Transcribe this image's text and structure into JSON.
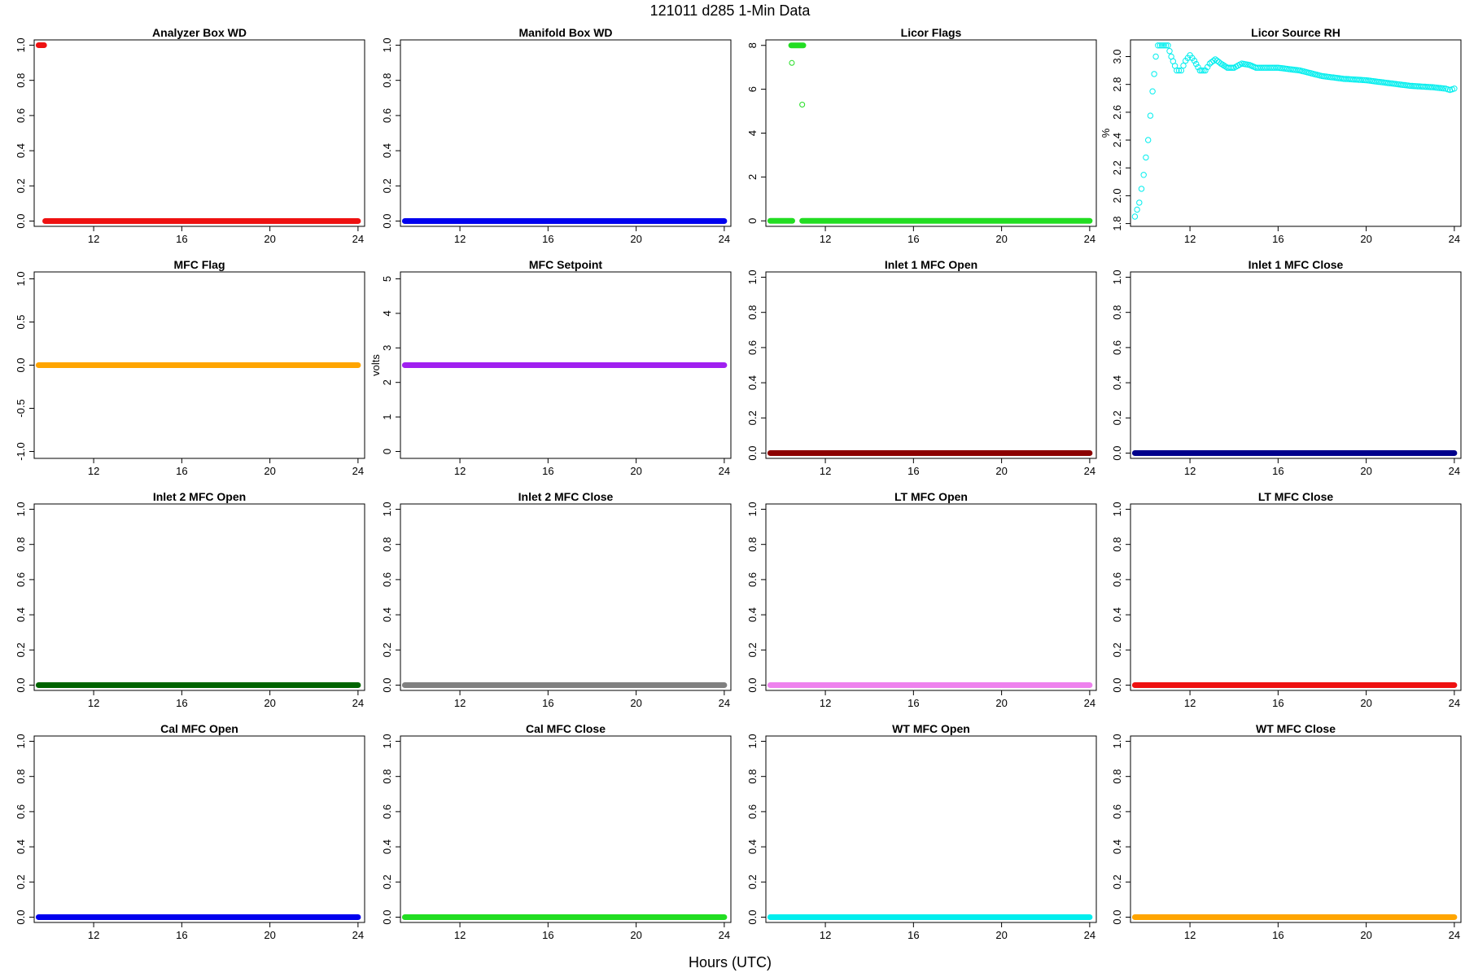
{
  "figure": {
    "title": "121011   d285   1-Min Data",
    "xlabel": "Hours (UTC)"
  },
  "chart_data": [
    {
      "type": "scatter",
      "title": "Analyzer Box WD",
      "ylabel": "",
      "color": "#ee1111",
      "xlim": [
        9.3,
        24.3
      ],
      "ylim": [
        -0.03,
        1.03
      ],
      "xticks": [
        12,
        16,
        20,
        24
      ],
      "yticks": [
        0.0,
        0.2,
        0.4,
        0.6,
        0.8,
        1.0
      ],
      "ytick_labels": [
        "0.0",
        "0.2",
        "0.4",
        "0.6",
        "0.8",
        "1.0"
      ],
      "series": [
        {
          "segments": [
            {
              "x": [
                9.5,
                9.75
              ],
              "y": 1.0
            },
            {
              "x": [
                9.8,
                24.0
              ],
              "y": 0.0
            }
          ]
        }
      ]
    },
    {
      "type": "scatter",
      "title": "Manifold Box WD",
      "ylabel": "",
      "color": "#0000ee",
      "xlim": [
        9.3,
        24.3
      ],
      "ylim": [
        -0.03,
        1.03
      ],
      "xticks": [
        12,
        16,
        20,
        24
      ],
      "yticks": [
        0.0,
        0.2,
        0.4,
        0.6,
        0.8,
        1.0
      ],
      "ytick_labels": [
        "0.0",
        "0.2",
        "0.4",
        "0.6",
        "0.8",
        "1.0"
      ],
      "series": [
        {
          "segments": [
            {
              "x": [
                9.5,
                24.0
              ],
              "y": 0.0
            }
          ]
        }
      ]
    },
    {
      "type": "scatter",
      "title": "Licor Flags",
      "ylabel": "",
      "color": "#22dd22",
      "xlim": [
        9.3,
        24.3
      ],
      "ylim": [
        -0.25,
        8.25
      ],
      "xticks": [
        12,
        16,
        20,
        24
      ],
      "yticks": [
        0,
        2,
        4,
        6,
        8
      ],
      "ytick_labels": [
        "0",
        "2",
        "4",
        "6",
        "8"
      ],
      "series": [
        {
          "segments": [
            {
              "x": [
                9.5,
                10.5
              ],
              "y": 0.0
            },
            {
              "x": [
                10.45,
                11.0
              ],
              "y": 8.0
            },
            {
              "x": [
                10.95,
                24.0
              ],
              "y": 0.0
            }
          ],
          "points": [
            {
              "x": [
                10.48
              ],
              "y": 7.2
            },
            {
              "x": [
                10.95
              ],
              "y": 5.3
            }
          ]
        }
      ]
    },
    {
      "type": "scatter",
      "title": "Licor Source RH",
      "ylabel": "%",
      "color": "#00eeee",
      "xlim": [
        9.3,
        24.3
      ],
      "ylim": [
        1.78,
        3.12
      ],
      "xticks": [
        12,
        16,
        20,
        24
      ],
      "yticks": [
        1.8,
        2.0,
        2.2,
        2.4,
        2.6,
        2.8,
        3.0
      ],
      "ytick_labels": [
        "1.8",
        "2.0",
        "2.2",
        "2.4",
        "2.6",
        "2.8",
        "3.0"
      ],
      "series": [
        {
          "curve": [
            [
              9.5,
              1.85
            ],
            [
              9.7,
              1.95
            ],
            [
              9.9,
              2.15
            ],
            [
              10.1,
              2.4
            ],
            [
              10.3,
              2.75
            ],
            [
              10.45,
              3.0
            ],
            [
              10.55,
              3.08
            ],
            [
              11.0,
              3.08
            ],
            [
              11.15,
              3.0
            ],
            [
              11.4,
              2.9
            ],
            [
              11.6,
              2.9
            ],
            [
              11.8,
              2.97
            ],
            [
              12.0,
              3.01
            ],
            [
              12.2,
              2.97
            ],
            [
              12.45,
              2.9
            ],
            [
              12.7,
              2.9
            ],
            [
              12.9,
              2.95
            ],
            [
              13.15,
              2.98
            ],
            [
              13.4,
              2.95
            ],
            [
              13.7,
              2.92
            ],
            [
              14.0,
              2.92
            ],
            [
              14.35,
              2.95
            ],
            [
              14.7,
              2.94
            ],
            [
              15.0,
              2.92
            ],
            [
              16.0,
              2.92
            ],
            [
              17.0,
              2.9
            ],
            [
              18.0,
              2.86
            ],
            [
              19.0,
              2.84
            ],
            [
              20.0,
              2.83
            ],
            [
              21.0,
              2.81
            ],
            [
              22.0,
              2.79
            ],
            [
              23.0,
              2.78
            ],
            [
              23.6,
              2.77
            ],
            [
              23.8,
              2.76
            ],
            [
              24.0,
              2.77
            ]
          ]
        }
      ]
    },
    {
      "type": "scatter",
      "title": "MFC Flag",
      "ylabel": "",
      "color": "#ffa500",
      "xlim": [
        9.3,
        24.3
      ],
      "ylim": [
        -1.08,
        1.08
      ],
      "xticks": [
        12,
        16,
        20,
        24
      ],
      "yticks": [
        -1.0,
        -0.5,
        0.0,
        0.5,
        1.0
      ],
      "ytick_labels": [
        "-1.0",
        "-0.5",
        "0.0",
        "0.5",
        "1.0"
      ],
      "series": [
        {
          "segments": [
            {
              "x": [
                9.5,
                24.0
              ],
              "y": 0.0
            }
          ]
        }
      ]
    },
    {
      "type": "scatter",
      "title": "MFC Setpoint",
      "ylabel": "volts",
      "color": "#a020f0",
      "xlim": [
        9.3,
        24.3
      ],
      "ylim": [
        -0.2,
        5.2
      ],
      "xticks": [
        12,
        16,
        20,
        24
      ],
      "yticks": [
        0,
        1,
        2,
        3,
        4,
        5
      ],
      "ytick_labels": [
        "0",
        "1",
        "2",
        "3",
        "4",
        "5"
      ],
      "series": [
        {
          "segments": [
            {
              "x": [
                9.5,
                24.0
              ],
              "y": 2.5
            }
          ]
        }
      ]
    },
    {
      "type": "scatter",
      "title": "Inlet 1 MFC Open",
      "ylabel": "",
      "color": "#8b0000",
      "xlim": [
        9.3,
        24.3
      ],
      "ylim": [
        -0.03,
        1.03
      ],
      "xticks": [
        12,
        16,
        20,
        24
      ],
      "yticks": [
        0.0,
        0.2,
        0.4,
        0.6,
        0.8,
        1.0
      ],
      "ytick_labels": [
        "0.0",
        "0.2",
        "0.4",
        "0.6",
        "0.8",
        "1.0"
      ],
      "series": [
        {
          "segments": [
            {
              "x": [
                9.5,
                24.0
              ],
              "y": 0.0
            }
          ]
        }
      ]
    },
    {
      "type": "scatter",
      "title": "Inlet 1 MFC Close",
      "ylabel": "",
      "color": "#00008b",
      "xlim": [
        9.3,
        24.3
      ],
      "ylim": [
        -0.03,
        1.03
      ],
      "xticks": [
        12,
        16,
        20,
        24
      ],
      "yticks": [
        0.0,
        0.2,
        0.4,
        0.6,
        0.8,
        1.0
      ],
      "ytick_labels": [
        "0.0",
        "0.2",
        "0.4",
        "0.6",
        "0.8",
        "1.0"
      ],
      "series": [
        {
          "segments": [
            {
              "x": [
                9.5,
                24.0
              ],
              "y": 0.0
            }
          ]
        }
      ]
    },
    {
      "type": "scatter",
      "title": "Inlet 2 MFC Open",
      "ylabel": "",
      "color": "#006400",
      "xlim": [
        9.3,
        24.3
      ],
      "ylim": [
        -0.03,
        1.03
      ],
      "xticks": [
        12,
        16,
        20,
        24
      ],
      "yticks": [
        0.0,
        0.2,
        0.4,
        0.6,
        0.8,
        1.0
      ],
      "ytick_labels": [
        "0.0",
        "0.2",
        "0.4",
        "0.6",
        "0.8",
        "1.0"
      ],
      "series": [
        {
          "segments": [
            {
              "x": [
                9.5,
                24.0
              ],
              "y": 0.0
            }
          ]
        }
      ]
    },
    {
      "type": "scatter",
      "title": "Inlet 2 MFC Close",
      "ylabel": "",
      "color": "#808080",
      "xlim": [
        9.3,
        24.3
      ],
      "ylim": [
        -0.03,
        1.03
      ],
      "xticks": [
        12,
        16,
        20,
        24
      ],
      "yticks": [
        0.0,
        0.2,
        0.4,
        0.6,
        0.8,
        1.0
      ],
      "ytick_labels": [
        "0.0",
        "0.2",
        "0.4",
        "0.6",
        "0.8",
        "1.0"
      ],
      "series": [
        {
          "segments": [
            {
              "x": [
                9.5,
                24.0
              ],
              "y": 0.0
            }
          ]
        }
      ]
    },
    {
      "type": "scatter",
      "title": "LT MFC Open",
      "ylabel": "",
      "color": "#ee82ee",
      "xlim": [
        9.3,
        24.3
      ],
      "ylim": [
        -0.03,
        1.03
      ],
      "xticks": [
        12,
        16,
        20,
        24
      ],
      "yticks": [
        0.0,
        0.2,
        0.4,
        0.6,
        0.8,
        1.0
      ],
      "ytick_labels": [
        "0.0",
        "0.2",
        "0.4",
        "0.6",
        "0.8",
        "1.0"
      ],
      "series": [
        {
          "segments": [
            {
              "x": [
                9.5,
                24.0
              ],
              "y": 0.0
            }
          ]
        }
      ]
    },
    {
      "type": "scatter",
      "title": "LT MFC Close",
      "ylabel": "",
      "color": "#ee1111",
      "xlim": [
        9.3,
        24.3
      ],
      "ylim": [
        -0.03,
        1.03
      ],
      "xticks": [
        12,
        16,
        20,
        24
      ],
      "yticks": [
        0.0,
        0.2,
        0.4,
        0.6,
        0.8,
        1.0
      ],
      "ytick_labels": [
        "0.0",
        "0.2",
        "0.4",
        "0.6",
        "0.8",
        "1.0"
      ],
      "series": [
        {
          "segments": [
            {
              "x": [
                9.5,
                24.0
              ],
              "y": 0.0
            }
          ]
        }
      ]
    },
    {
      "type": "scatter",
      "title": "Cal MFC Open",
      "ylabel": "",
      "color": "#0000ee",
      "xlim": [
        9.3,
        24.3
      ],
      "ylim": [
        -0.03,
        1.03
      ],
      "xticks": [
        12,
        16,
        20,
        24
      ],
      "yticks": [
        0.0,
        0.2,
        0.4,
        0.6,
        0.8,
        1.0
      ],
      "ytick_labels": [
        "0.0",
        "0.2",
        "0.4",
        "0.6",
        "0.8",
        "1.0"
      ],
      "series": [
        {
          "segments": [
            {
              "x": [
                9.5,
                24.0
              ],
              "y": 0.0
            }
          ]
        }
      ]
    },
    {
      "type": "scatter",
      "title": "Cal MFC Close",
      "ylabel": "",
      "color": "#22dd22",
      "xlim": [
        9.3,
        24.3
      ],
      "ylim": [
        -0.03,
        1.03
      ],
      "xticks": [
        12,
        16,
        20,
        24
      ],
      "yticks": [
        0.0,
        0.2,
        0.4,
        0.6,
        0.8,
        1.0
      ],
      "ytick_labels": [
        "0.0",
        "0.2",
        "0.4",
        "0.6",
        "0.8",
        "1.0"
      ],
      "series": [
        {
          "segments": [
            {
              "x": [
                9.5,
                24.0
              ],
              "y": 0.0
            }
          ]
        }
      ]
    },
    {
      "type": "scatter",
      "title": "WT MFC Open",
      "ylabel": "",
      "color": "#00eeee",
      "xlim": [
        9.3,
        24.3
      ],
      "ylim": [
        -0.03,
        1.03
      ],
      "xticks": [
        12,
        16,
        20,
        24
      ],
      "yticks": [
        0.0,
        0.2,
        0.4,
        0.6,
        0.8,
        1.0
      ],
      "ytick_labels": [
        "0.0",
        "0.2",
        "0.4",
        "0.6",
        "0.8",
        "1.0"
      ],
      "series": [
        {
          "segments": [
            {
              "x": [
                9.5,
                24.0
              ],
              "y": 0.0
            }
          ]
        }
      ]
    },
    {
      "type": "scatter",
      "title": "WT MFC Close",
      "ylabel": "",
      "color": "#ffa500",
      "xlim": [
        9.3,
        24.3
      ],
      "ylim": [
        -0.03,
        1.03
      ],
      "xticks": [
        12,
        16,
        20,
        24
      ],
      "yticks": [
        0.0,
        0.2,
        0.4,
        0.6,
        0.8,
        1.0
      ],
      "ytick_labels": [
        "0.0",
        "0.2",
        "0.4",
        "0.6",
        "0.8",
        "1.0"
      ],
      "series": [
        {
          "segments": [
            {
              "x": [
                9.5,
                24.0
              ],
              "y": 0.0
            }
          ]
        }
      ]
    }
  ]
}
